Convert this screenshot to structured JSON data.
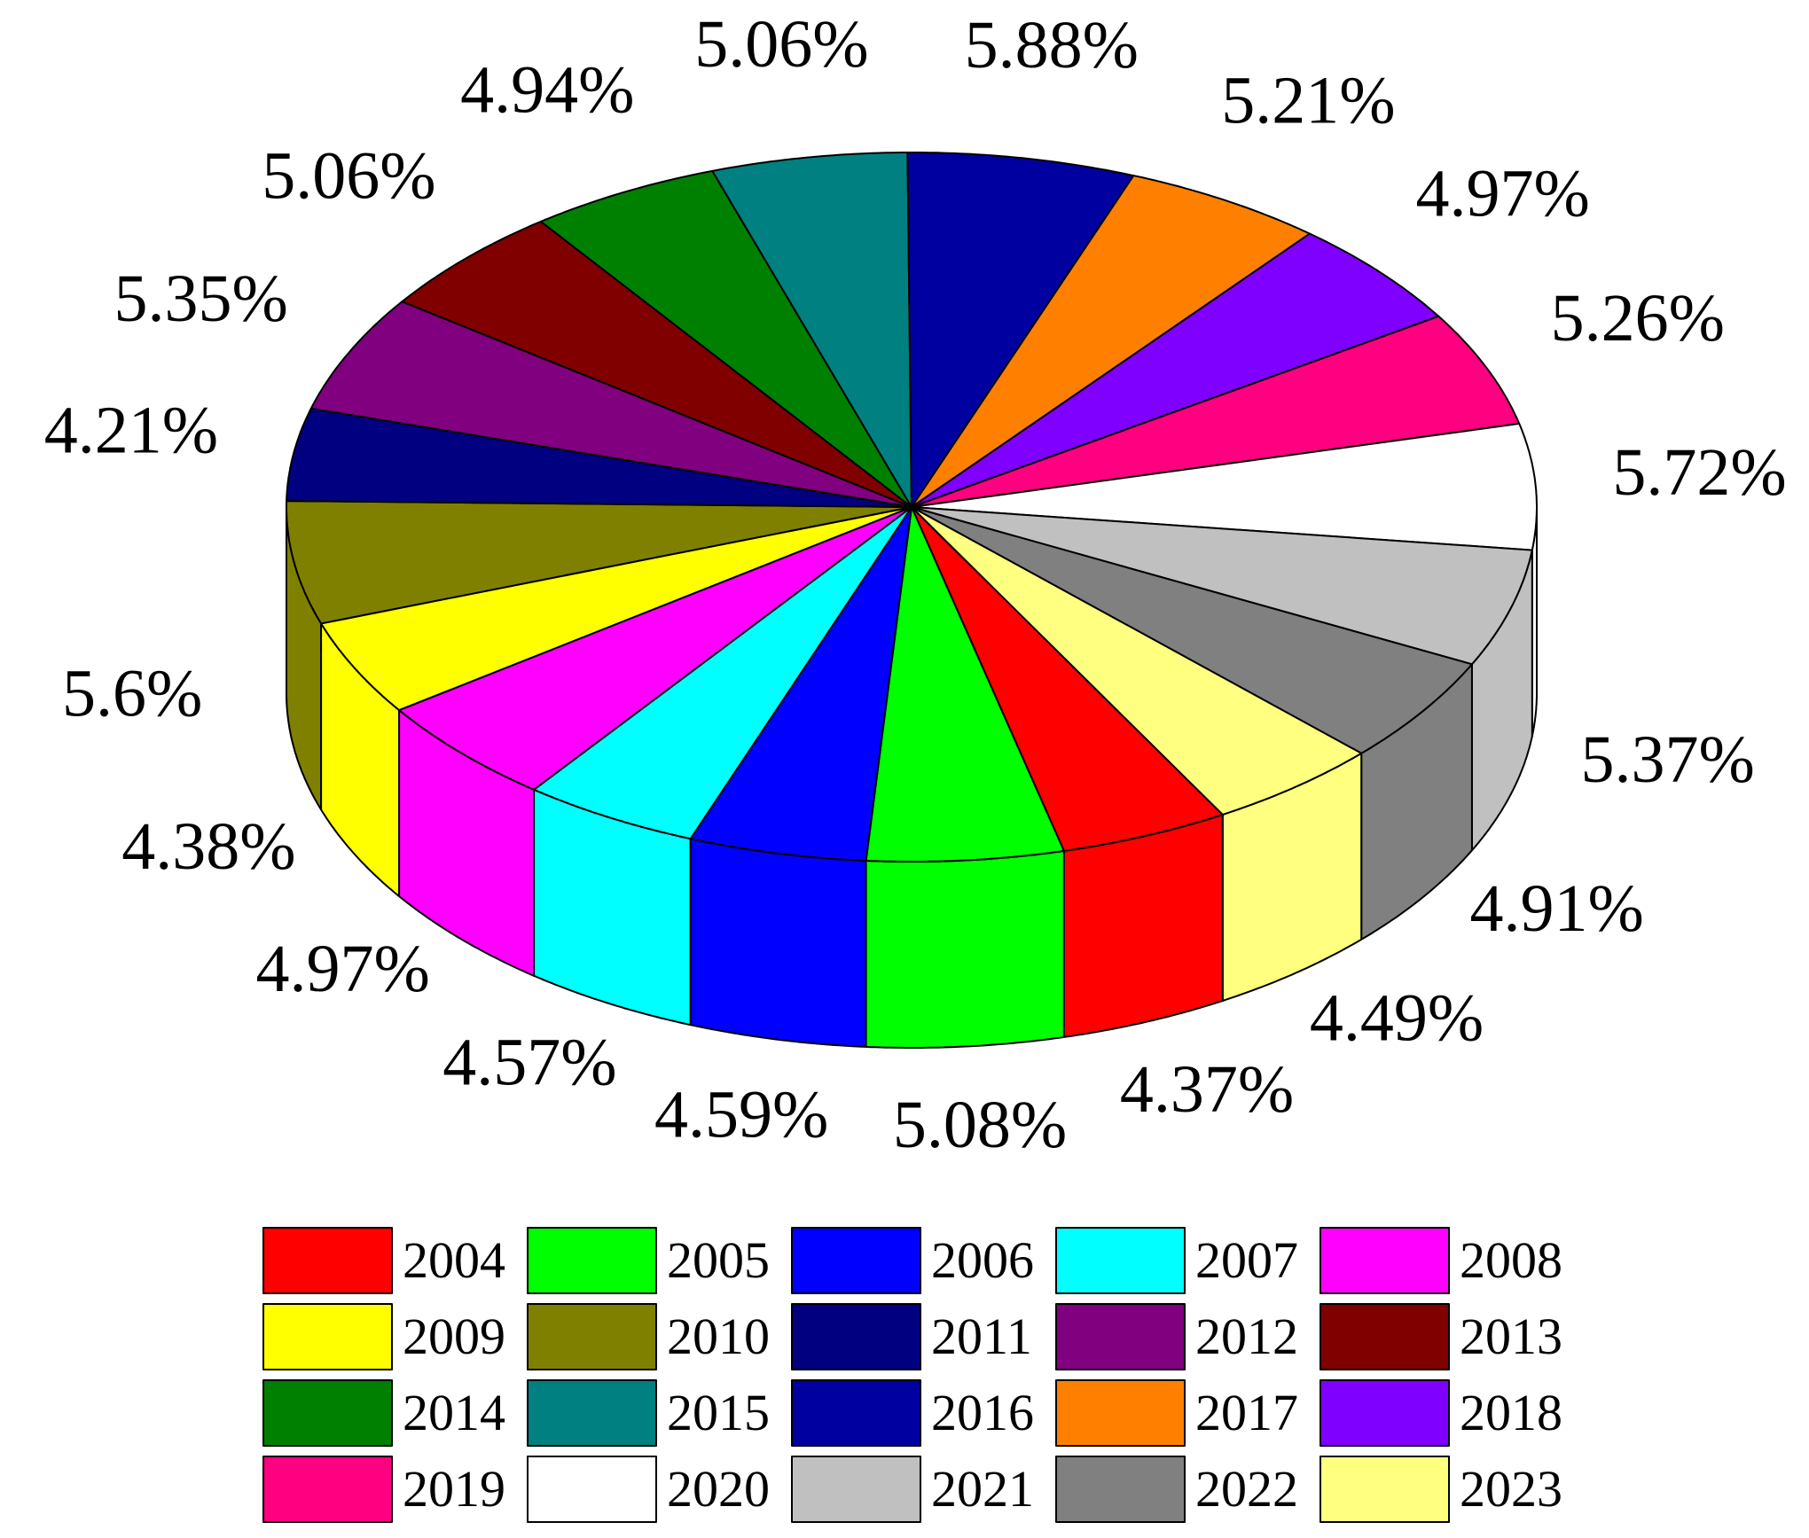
{
  "chart_data": {
    "type": "pie",
    "style": "3d",
    "title": "",
    "slices": [
      {
        "year": "2004",
        "value": 4.37,
        "label": "4.37%",
        "color": "#FF0000"
      },
      {
        "year": "2005",
        "value": 5.08,
        "label": "5.08%",
        "color": "#00FF00"
      },
      {
        "year": "2006",
        "value": 4.59,
        "label": "4.59%",
        "color": "#0000FF"
      },
      {
        "year": "2007",
        "value": 4.57,
        "label": "4.57%",
        "color": "#00FFFF"
      },
      {
        "year": "2008",
        "value": 4.97,
        "label": "4.97%",
        "color": "#FF00FF"
      },
      {
        "year": "2009",
        "value": 4.38,
        "label": "4.38%",
        "color": "#FFFF00"
      },
      {
        "year": "2010",
        "value": 5.6,
        "label": "5.6%",
        "color": "#808000"
      },
      {
        "year": "2011",
        "value": 4.21,
        "label": "4.21%",
        "color": "#000080"
      },
      {
        "year": "2012",
        "value": 5.35,
        "label": "5.35%",
        "color": "#800080"
      },
      {
        "year": "2013",
        "value": 5.06,
        "label": "5.06%",
        "color": "#800000"
      },
      {
        "year": "2014",
        "value": 4.94,
        "label": "4.94%",
        "color": "#008000"
      },
      {
        "year": "2015",
        "value": 5.06,
        "label": "5.06%",
        "color": "#008080"
      },
      {
        "year": "2016",
        "value": 5.88,
        "label": "5.88%",
        "color": "#0000A0"
      },
      {
        "year": "2017",
        "value": 5.21,
        "label": "5.21%",
        "color": "#FF8000"
      },
      {
        "year": "2018",
        "value": 4.97,
        "label": "4.97%",
        "color": "#8000FF"
      },
      {
        "year": "2019",
        "value": 5.26,
        "label": "5.26%",
        "color": "#FF0080"
      },
      {
        "year": "2020",
        "value": 5.72,
        "label": "5.72%",
        "color": "#FFFFFF"
      },
      {
        "year": "2021",
        "value": 5.37,
        "label": "5.37%",
        "color": "#C0C0C0"
      },
      {
        "year": "2022",
        "value": 4.91,
        "label": "4.91%",
        "color": "#808080"
      },
      {
        "year": "2023",
        "value": 4.49,
        "label": "4.49%",
        "color": "#FFFF80"
      }
    ],
    "legend": {
      "placement": "bottom",
      "columns": 5,
      "items": [
        "2004",
        "2005",
        "2006",
        "2007",
        "2008",
        "2009",
        "2010",
        "2011",
        "2012",
        "2013",
        "2014",
        "2015",
        "2016",
        "2017",
        "2018",
        "2019",
        "2020",
        "2021",
        "2022",
        "2023"
      ]
    }
  }
}
